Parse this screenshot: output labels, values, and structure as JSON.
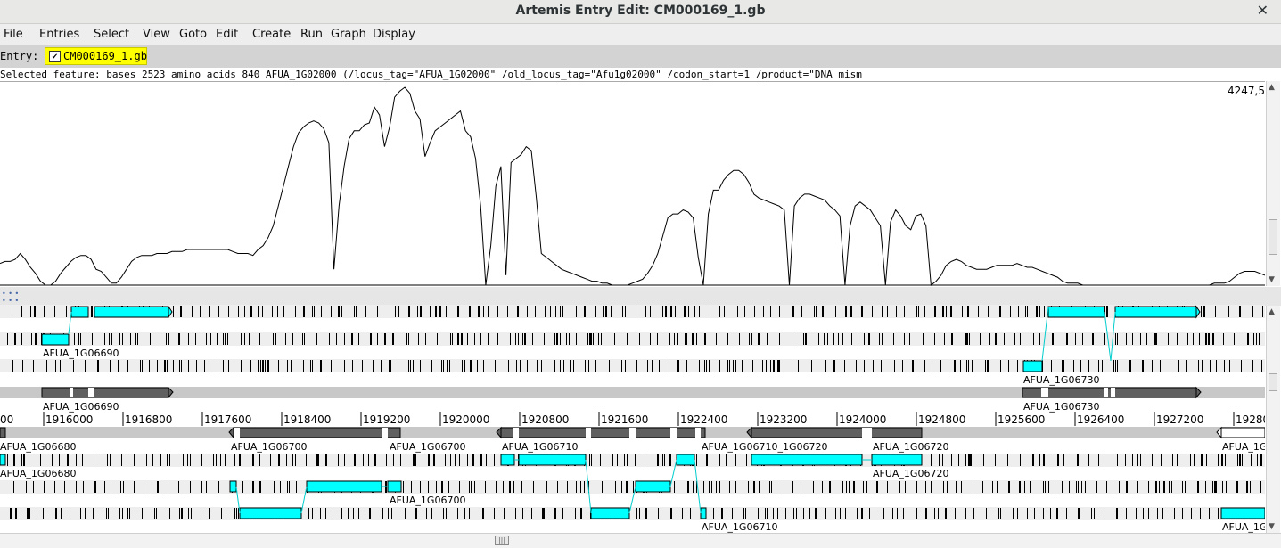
{
  "window": {
    "title": "Artemis Entry Edit: CM000169_1.gb",
    "close_glyph": "✕"
  },
  "menu": [
    {
      "label": "File"
    },
    {
      "label": "Entries"
    },
    {
      "label": "Select"
    },
    {
      "label": "View"
    },
    {
      "label": "Goto"
    },
    {
      "label": "Edit"
    },
    {
      "label": "Create"
    },
    {
      "label": "Run"
    },
    {
      "label": "Graph"
    },
    {
      "label": "Display"
    }
  ],
  "entry": {
    "label": "Entry:",
    "name": "CM000169_1.gb",
    "checked": true,
    "highlight": "#ffff00"
  },
  "selected_feature": "Selected feature:  bases 2523  amino acids 840  AFUA_1G02000  (/locus_tag=\"AFUA_1G02000\" /old_locus_tag=\"Afu1g02000\" /codon_start=1 /product=\"DNA mism",
  "graph": {
    "max_label": "4247,5",
    "line_color": "#000000",
    "values": [
      0.11,
      0.12,
      0.12,
      0.13,
      0.16,
      0.13,
      0.09,
      0.06,
      0.02,
      0.0,
      0.0,
      0.02,
      0.06,
      0.09,
      0.12,
      0.14,
      0.15,
      0.15,
      0.13,
      0.08,
      0.07,
      0.04,
      0.01,
      0.01,
      0.04,
      0.08,
      0.12,
      0.14,
      0.15,
      0.15,
      0.15,
      0.16,
      0.16,
      0.16,
      0.17,
      0.17,
      0.17,
      0.18,
      0.18,
      0.18,
      0.18,
      0.18,
      0.18,
      0.18,
      0.18,
      0.18,
      0.17,
      0.16,
      0.16,
      0.16,
      0.15,
      0.18,
      0.2,
      0.24,
      0.3,
      0.4,
      0.5,
      0.6,
      0.7,
      0.77,
      0.8,
      0.82,
      0.83,
      0.82,
      0.79,
      0.72,
      0.08,
      0.4,
      0.6,
      0.74,
      0.78,
      0.78,
      0.81,
      0.82,
      0.9,
      0.86,
      0.7,
      0.8,
      0.95,
      0.98,
      1.0,
      0.97,
      0.88,
      0.84,
      0.65,
      0.72,
      0.78,
      0.8,
      0.82,
      0.84,
      0.86,
      0.88,
      0.78,
      0.75,
      0.64,
      0.4,
      0.0,
      0.2,
      0.5,
      0.6,
      0.05,
      0.62,
      0.64,
      0.66,
      0.7,
      0.68,
      0.44,
      0.16,
      0.14,
      0.12,
      0.1,
      0.08,
      0.07,
      0.06,
      0.05,
      0.04,
      0.03,
      0.02,
      0.02,
      0.01,
      0.01,
      0.0,
      0.0,
      0.0,
      0.0,
      0.01,
      0.02,
      0.03,
      0.06,
      0.1,
      0.16,
      0.25,
      0.34,
      0.36,
      0.36,
      0.38,
      0.37,
      0.34,
      0.14,
      0.0,
      0.36,
      0.48,
      0.48,
      0.53,
      0.56,
      0.58,
      0.58,
      0.56,
      0.52,
      0.46,
      0.44,
      0.43,
      0.42,
      0.41,
      0.4,
      0.38,
      0.0,
      0.4,
      0.44,
      0.46,
      0.46,
      0.45,
      0.44,
      0.43,
      0.4,
      0.38,
      0.35,
      0.0,
      0.3,
      0.4,
      0.42,
      0.4,
      0.38,
      0.34,
      0.3,
      0.0,
      0.32,
      0.38,
      0.35,
      0.3,
      0.28,
      0.35,
      0.36,
      0.3,
      0.0,
      0.02,
      0.05,
      0.1,
      0.12,
      0.13,
      0.12,
      0.1,
      0.09,
      0.08,
      0.08,
      0.08,
      0.09,
      0.1,
      0.1,
      0.1,
      0.1,
      0.11,
      0.1,
      0.09,
      0.09,
      0.08,
      0.07,
      0.06,
      0.05,
      0.04,
      0.02,
      0.01,
      0.01,
      0.01,
      0.0,
      0.0,
      0.0,
      0.0,
      0.0,
      0.0,
      0.0,
      0.0,
      0.0,
      0.0,
      0.0,
      0.0,
      0.0,
      0.0,
      0.0,
      0.0,
      0.0,
      0.0,
      0.0,
      0.0,
      0.0,
      0.0,
      0.0,
      0.0,
      0.0,
      0.0,
      0.01,
      0.01,
      0.01,
      0.02,
      0.04,
      0.06,
      0.07,
      0.07,
      0.07,
      0.06,
      0.05
    ]
  },
  "ruler": {
    "labels": [
      "00",
      "1916000",
      "1916800",
      "1917600",
      "1918400",
      "1919200",
      "1920000",
      "1920800",
      "1921600",
      "1922400",
      "1923200",
      "1924000",
      "1924800",
      "1925600",
      "1926400",
      "1927200",
      "19280"
    ]
  },
  "feature_labels": {
    "fwd2": "AFUA_1G06690",
    "fwd_gene": "AFUA_1G06690",
    "fwd3": "AFUA_1G06730",
    "fwd_gene2": "AFUA_1G06730",
    "rev_gene_1": "AFUA_1G06680",
    "rev_gene_2": "AFUA_1G06700",
    "rev_gene_3": "AFUA_1G06700",
    "rev_gene_4": "AFUA_1G06710",
    "rev_gene_5": "AFUA_1G06710_1G06720",
    "rev_gene_6": "AFUA_1G06720",
    "rev_gene_7": "AFUA_1G",
    "rev1": "AFUA_1G06680",
    "rev1b": "AFUA_1G06720",
    "rev2": "AFUA_1G06700",
    "rev3": "AFUA_1G06710",
    "rev3b": "AFUA_1G"
  },
  "colors": {
    "exon": "#00ffff",
    "gene": "#606060",
    "track_bg": "#eeeeee",
    "mid_bg": "#c8c8c8",
    "stop": "#000000"
  }
}
